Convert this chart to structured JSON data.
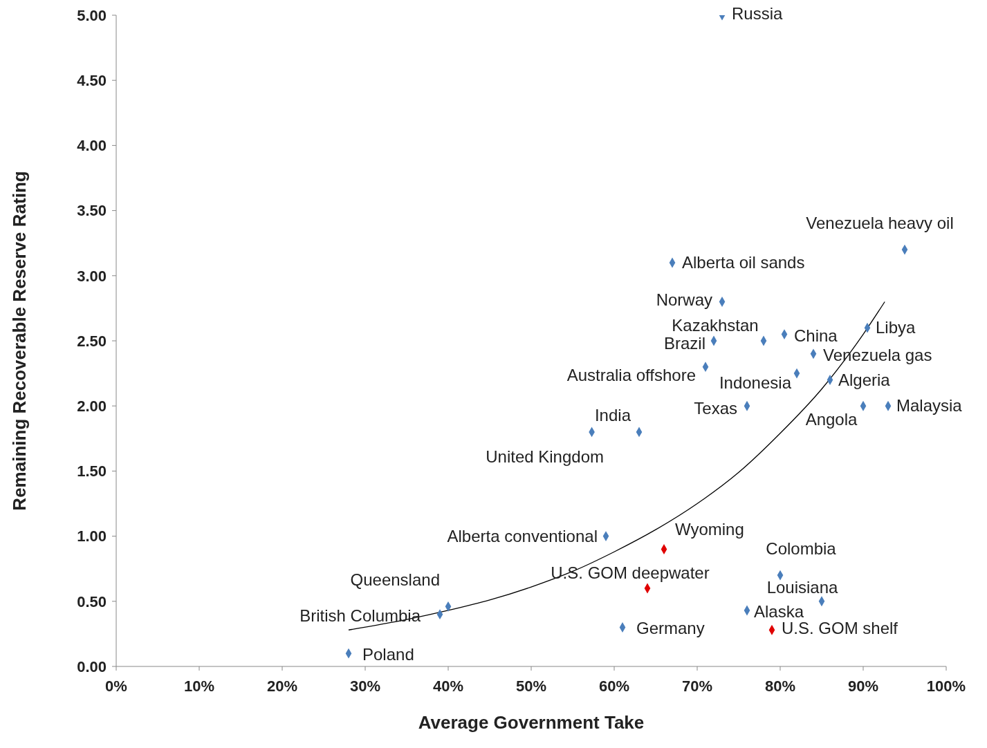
{
  "chart_data": {
    "type": "scatter",
    "xlabel": "Average Government Take",
    "ylabel": "Remaining Recoverable Reserve Rating",
    "marker": "diamond",
    "grid": false,
    "legend": false,
    "xlim": [
      0,
      100
    ],
    "xticks": [
      {
        "value": 0,
        "label": "0%"
      },
      {
        "value": 10,
        "label": "10%"
      },
      {
        "value": 20,
        "label": "20%"
      },
      {
        "value": 30,
        "label": "30%"
      },
      {
        "value": 40,
        "label": "40%"
      },
      {
        "value": 50,
        "label": "50%"
      },
      {
        "value": 60,
        "label": "60%"
      },
      {
        "value": 70,
        "label": "70%"
      },
      {
        "value": 80,
        "label": "80%"
      },
      {
        "value": 90,
        "label": "90%"
      },
      {
        "value": 100,
        "label": "100%"
      }
    ],
    "ylim": [
      0,
      5
    ],
    "yticks": [
      {
        "value": 0,
        "label": "0.00"
      },
      {
        "value": 0.5,
        "label": "0.50"
      },
      {
        "value": 1,
        "label": "1.00"
      },
      {
        "value": 1.5,
        "label": "1.50"
      },
      {
        "value": 2,
        "label": "2.00"
      },
      {
        "value": 2.5,
        "label": "2.50"
      },
      {
        "value": 3,
        "label": "3.00"
      },
      {
        "value": 3.5,
        "label": "3.50"
      },
      {
        "value": 4,
        "label": "4.00"
      },
      {
        "value": 4.5,
        "label": "4.50"
      },
      {
        "value": 5,
        "label": "5.00"
      }
    ],
    "series": [
      {
        "color": "#4a7ebb",
        "x": [
          73,
          95,
          67,
          73,
          90.5,
          78,
          80.5,
          72,
          84,
          71,
          82,
          86,
          76,
          90,
          93,
          57.3,
          63,
          59,
          80,
          85,
          76,
          40,
          39,
          61,
          28
        ],
        "values": [
          5.0,
          3.2,
          3.1,
          2.8,
          2.6,
          2.5,
          2.55,
          2.5,
          2.4,
          2.3,
          2.25,
          2.2,
          2.0,
          2.0,
          2.0,
          1.8,
          1.8,
          1.0,
          0.7,
          0.5,
          0.43,
          0.46,
          0.4,
          0.3,
          0.1
        ]
      },
      {
        "color": "#e00000",
        "x": [
          66,
          64,
          79
        ],
        "values": [
          0.9,
          0.6,
          0.28
        ]
      },
      {
        "type": "line",
        "color": "#000000",
        "marker": "none",
        "x": [
          28,
          35,
          40,
          45,
          50,
          55,
          60,
          65,
          70,
          75,
          80,
          85,
          90,
          92.6
        ],
        "values": [
          0.28,
          0.36,
          0.43,
          0.51,
          0.61,
          0.73,
          0.88,
          1.05,
          1.25,
          1.49,
          1.79,
          2.13,
          2.55,
          2.8
        ]
      }
    ],
    "annotations": [
      {
        "text": "Russia",
        "x": 73,
        "y": 5.0
      },
      {
        "text": "Venezuela heavy oil",
        "x": 95,
        "y": 3.2
      },
      {
        "text": "Alberta oil sands",
        "x": 67,
        "y": 3.1
      },
      {
        "text": "Norway",
        "x": 73,
        "y": 2.8
      },
      {
        "text": "Libya",
        "x": 90.5,
        "y": 2.6
      },
      {
        "text": "Kazakhstan",
        "x": 78,
        "y": 2.5
      },
      {
        "text": "China",
        "x": 80.5,
        "y": 2.55
      },
      {
        "text": "Brazil",
        "x": 72,
        "y": 2.5
      },
      {
        "text": "Venezuela gas",
        "x": 84,
        "y": 2.4
      },
      {
        "text": "Australia offshore",
        "x": 71,
        "y": 2.3
      },
      {
        "text": "Indonesia",
        "x": 82,
        "y": 2.25
      },
      {
        "text": "Algeria",
        "x": 86,
        "y": 2.2
      },
      {
        "text": "Texas",
        "x": 76,
        "y": 2.0
      },
      {
        "text": "Angola",
        "x": 90,
        "y": 2.0
      },
      {
        "text": "Malaysia",
        "x": 93,
        "y": 2.0
      },
      {
        "text": "United Kingdom",
        "x": 57.3,
        "y": 1.8
      },
      {
        "text": "India",
        "x": 63,
        "y": 1.8
      },
      {
        "text": "Alberta conventional",
        "x": 59,
        "y": 1.0
      },
      {
        "text": "Colombia",
        "x": 80,
        "y": 0.7
      },
      {
        "text": "Louisiana",
        "x": 85,
        "y": 0.5
      },
      {
        "text": "Alaska",
        "x": 76,
        "y": 0.43
      },
      {
        "text": "Queensland",
        "x": 40,
        "y": 0.46
      },
      {
        "text": "British Columbia",
        "x": 39,
        "y": 0.4
      },
      {
        "text": "Germany",
        "x": 61,
        "y": 0.3
      },
      {
        "text": "Poland",
        "x": 28,
        "y": 0.1
      },
      {
        "text": "Wyoming",
        "x": 66,
        "y": 0.9
      },
      {
        "text": "U.S. GOM deepwater",
        "x": 64,
        "y": 0.6
      },
      {
        "text": "U.S. GOM shelf",
        "x": 79,
        "y": 0.28
      }
    ]
  }
}
